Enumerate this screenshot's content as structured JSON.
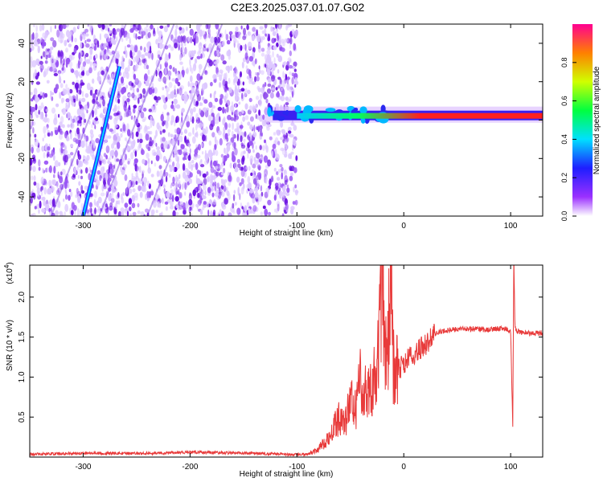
{
  "title": "C2E3.2025.037.01.07.G02",
  "colors": {
    "snr_line": "#e83a3a",
    "scatter": "#6a11e0"
  },
  "chart_data": [
    {
      "type": "heatmap",
      "title": "C2E3.2025.037.01.07.G02",
      "xlabel": "Height of straight line (km)",
      "ylabel": "Frequency (Hz)",
      "xlim": [
        -350,
        130
      ],
      "ylim": [
        -50,
        50
      ],
      "x_ticks": [
        "-300",
        "-200",
        "-100",
        "0",
        "100"
      ],
      "y_ticks": [
        "-40",
        "-20",
        "0",
        "20",
        "40"
      ],
      "colorbar": {
        "label": "Normalized spectral amplitude",
        "range": [
          0,
          1
        ],
        "ticks": [
          "0.0",
          "0.2",
          "0.4",
          "0.6",
          "0.8"
        ]
      },
      "features": {
        "noise_region_x": [
          -350,
          -100
        ],
        "signal_line_x": [
          -100,
          130
        ],
        "signal_frequency_hz": 2,
        "signal_level_start": 0.35,
        "signal_level_end": 0.95,
        "chirp_streak": {
          "x": [
            -300,
            -266
          ],
          "y": [
            -50,
            28
          ]
        }
      }
    },
    {
      "type": "line",
      "xlabel": "Height of straight line (km)",
      "ylabel": "SNR (10 * v/v)",
      "y_multiplier": "(x10",
      "y_multiplier_exp": "4",
      "y_multiplier_close": ")",
      "xlim": [
        -350,
        130
      ],
      "ylim": [
        0,
        24000
      ],
      "x_ticks": [
        "-300",
        "-200",
        "-100",
        "0",
        "100"
      ],
      "y_ticks": [
        "0.5",
        "1.0",
        "1.5",
        "2.0"
      ],
      "series": [
        {
          "x": [
            -350,
            -300,
            -250,
            -200,
            -150,
            -110,
            -100,
            -90,
            -80,
            -70,
            -60,
            -55,
            -50,
            -45,
            -40,
            -35,
            -30,
            -25,
            -20,
            -17,
            -15,
            -12,
            -10,
            -5,
            0,
            5,
            10,
            20,
            30,
            40,
            50,
            60,
            70,
            80,
            90,
            95,
            100,
            102,
            103,
            104,
            105,
            107,
            110,
            120,
            130
          ],
          "y": [
            350,
            500,
            450,
            600,
            500,
            350,
            300,
            400,
            1000,
            2500,
            5000,
            4000,
            7000,
            6000,
            10000,
            8000,
            9000,
            11000,
            21500,
            12000,
            14000,
            23000,
            11500,
            11000,
            11500,
            12500,
            13000,
            14000,
            15500,
            15800,
            16000,
            16000,
            16000,
            15900,
            16100,
            16000,
            15800,
            3800,
            25000,
            16500,
            15800,
            15700,
            15600,
            15400,
            15500
          ]
        }
      ]
    }
  ]
}
